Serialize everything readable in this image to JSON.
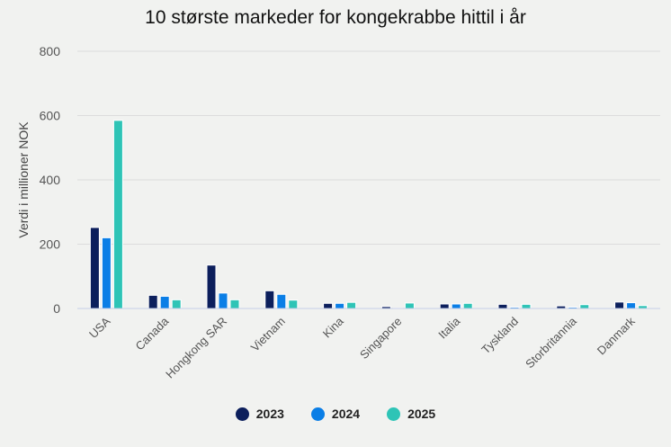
{
  "chart_data": {
    "type": "bar",
    "title": "10 største markeder for kongekrabbe hittil i år",
    "xlabel": "",
    "ylabel": "Verdi i millioner NOK",
    "ylim": [
      0,
      800
    ],
    "yticks": [
      0,
      200,
      400,
      600,
      800
    ],
    "grid": true,
    "legend_position": "bottom",
    "categories": [
      "USA",
      "Canada",
      "Hongkong SAR",
      "Vietnam",
      "Kina",
      "Singapore",
      "Italia",
      "Tyskland",
      "Storbritannia",
      "Danmark"
    ],
    "series": [
      {
        "name": "2023",
        "color": "#0c1f5c",
        "values": [
          252,
          41,
          135,
          55,
          16,
          6,
          14,
          13,
          8,
          20
        ]
      },
      {
        "name": "2024",
        "color": "#0a7ee6",
        "values": [
          220,
          38,
          48,
          44,
          16,
          1,
          14,
          4,
          4,
          18
        ]
      },
      {
        "name": "2025",
        "color": "#2ec4b6",
        "values": [
          585,
          27,
          27,
          26,
          19,
          17,
          16,
          13,
          12,
          9
        ]
      }
    ]
  }
}
